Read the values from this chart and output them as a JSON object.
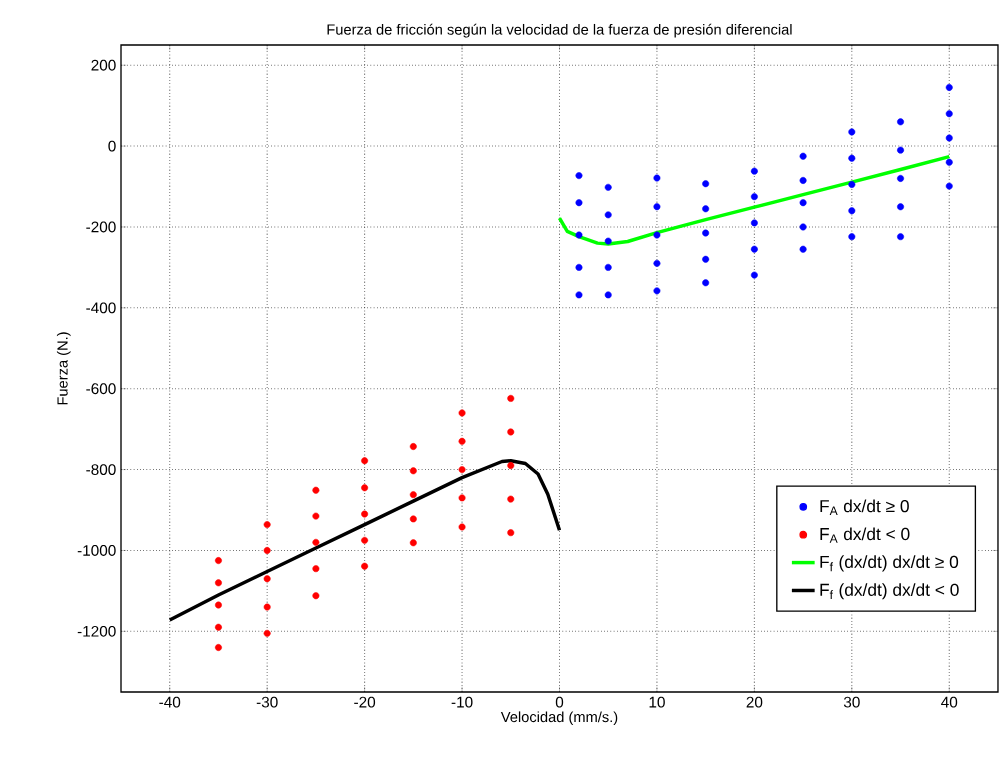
{
  "chart_data": {
    "type": "scatter",
    "title": "Fuerza de fricción según la velocidad de la fuerza de presión diferencial",
    "xlabel": "Velocidad (mm/s.)",
    "ylabel": "Fuerza (N.)",
    "xlim": [
      -45,
      45
    ],
    "ylim": [
      -1350,
      250
    ],
    "xticks": [
      -40,
      -30,
      -20,
      -10,
      0,
      10,
      20,
      30,
      40
    ],
    "yticks": [
      -1200,
      -1000,
      -800,
      -600,
      -400,
      -200,
      0,
      200
    ],
    "grid": true,
    "legend": "bottom right",
    "line_style": "solid",
    "series": [
      {
        "name": "F$_{A}$ dx/dt ≥ 0",
        "marker": "circle",
        "color": "#0000ff",
        "x": [
          2,
          2,
          2,
          2,
          2,
          5,
          5,
          5,
          5,
          5,
          10,
          10,
          10,
          10,
          10,
          15,
          15,
          15,
          15,
          15,
          20,
          20,
          20,
          20,
          20,
          25,
          25,
          25,
          25,
          25,
          30,
          30,
          30,
          30,
          30,
          35,
          35,
          35,
          35,
          35,
          40,
          40,
          40,
          40,
          40
        ],
        "values": [
          -73,
          -140,
          -220,
          -300,
          -368,
          -102,
          -170,
          -235,
          -300,
          -368,
          -79,
          -150,
          -220,
          -290,
          -358,
          -93,
          -155,
          -215,
          -280,
          -338,
          -62,
          -125,
          -190,
          -255,
          -319,
          -25,
          -85,
          -140,
          -200,
          -255,
          35,
          -30,
          -95,
          -160,
          -224,
          60,
          -10,
          -80,
          -150,
          -224,
          145,
          80,
          20,
          -40,
          -99
        ]
      },
      {
        "name": "F$_{A}$ dx/dt < 0",
        "marker": "circle",
        "color": "#ff0000",
        "x": [
          -35,
          -35,
          -35,
          -35,
          -35,
          -30,
          -30,
          -30,
          -30,
          -30,
          -25,
          -25,
          -25,
          -25,
          -25,
          -20,
          -20,
          -20,
          -20,
          -20,
          -15,
          -15,
          -15,
          -15,
          -15,
          -10,
          -10,
          -10,
          -10,
          -10,
          -5,
          -5,
          -5,
          -5,
          -5
        ],
        "values": [
          -1025,
          -1080,
          -1135,
          -1190,
          -1240,
          -936,
          -1000,
          -1070,
          -1140,
          -1205,
          -851,
          -915,
          -980,
          -1045,
          -1112,
          -778,
          -845,
          -910,
          -975,
          -1039,
          -743,
          -803,
          -862,
          -922,
          -981,
          -660,
          -730,
          -800,
          -870,
          -942,
          -624,
          -707,
          -790,
          -873,
          -956
        ]
      },
      {
        "name": "F$_{f}$ (dx/dt) dx/dt ≥ 0",
        "type": "line",
        "marker": "none",
        "color": "#00ff00",
        "x": [
          0,
          0.8,
          2,
          3.9,
          5,
          7,
          10,
          15,
          20,
          25,
          30,
          35,
          40
        ],
        "values": [
          -178,
          -211,
          -224,
          -240,
          -242,
          -236,
          -214,
          -182,
          -151,
          -120,
          -89,
          -58,
          -26
        ]
      },
      {
        "name": "F$_{f}$ (dx/dt) dx/dt < 0",
        "type": "line",
        "marker": "none",
        "color": "#000000",
        "x": [
          -40,
          -35,
          -30,
          -25,
          -20,
          -15,
          -10,
          -5.9,
          -5,
          -3.5,
          -2.2,
          -1.2,
          0
        ],
        "values": [
          -1172,
          -1110,
          -1052,
          -994,
          -936,
          -878,
          -820,
          -780,
          -778,
          -785,
          -811,
          -861,
          -950
        ]
      }
    ]
  }
}
